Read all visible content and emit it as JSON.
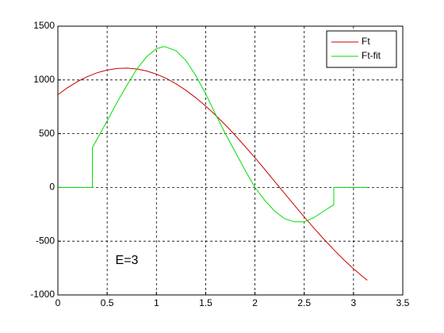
{
  "chart_data": {
    "type": "line",
    "xlim": [
      0,
      3.5
    ],
    "xticks": [
      0,
      0.5,
      1,
      1.5,
      2,
      2.5,
      3,
      3.5
    ],
    "ylim": [
      -1000,
      1500
    ],
    "yticks": [
      -1000,
      -500,
      0,
      500,
      1000,
      1500
    ],
    "grid": true,
    "legend": "top-right",
    "annotation": {
      "text": "E=3",
      "x": 0.7,
      "y": -680,
      "color": "#e00000"
    },
    "series": [
      {
        "name": "Ft",
        "color": "#cc0000",
        "x": [
          0,
          0.1,
          0.2,
          0.3,
          0.4,
          0.5,
          0.6,
          0.7,
          0.8,
          0.9,
          1.0,
          1.1,
          1.2,
          1.3,
          1.4,
          1.5,
          1.6,
          1.7,
          1.8,
          1.9,
          2.0,
          2.1,
          2.2,
          2.3,
          2.4,
          2.5,
          2.6,
          2.7,
          2.8,
          2.9,
          3.0,
          3.1,
          3.14
        ],
        "values": [
          863,
          929,
          985,
          1031,
          1067,
          1092,
          1106,
          1110,
          1102,
          1083,
          1054,
          1014,
          963,
          903,
          834,
          757,
          672,
          581,
          484,
          381,
          276,
          167,
          56,
          -55,
          -165,
          -274,
          -380,
          -482,
          -579,
          -672,
          -757,
          -834,
          -863
        ]
      },
      {
        "name": "Ft-fit",
        "color": "#00dd00",
        "x": [
          0,
          0.35,
          0.35,
          0.5,
          0.6,
          0.7,
          0.8,
          0.9,
          1.0,
          1.07,
          1.1,
          1.2,
          1.3,
          1.4,
          1.5,
          1.6,
          1.7,
          1.8,
          1.9,
          2.0,
          2.1,
          2.2,
          2.3,
          2.4,
          2.5,
          2.6,
          2.7,
          2.8,
          2.8,
          3.14
        ],
        "values": [
          0,
          0,
          370,
          620,
          790,
          950,
          1100,
          1215,
          1290,
          1310,
          1305,
          1270,
          1180,
          1040,
          870,
          680,
          500,
          330,
          160,
          0,
          -120,
          -220,
          -290,
          -320,
          -320,
          -280,
          -220,
          -160,
          0,
          0
        ]
      }
    ]
  }
}
